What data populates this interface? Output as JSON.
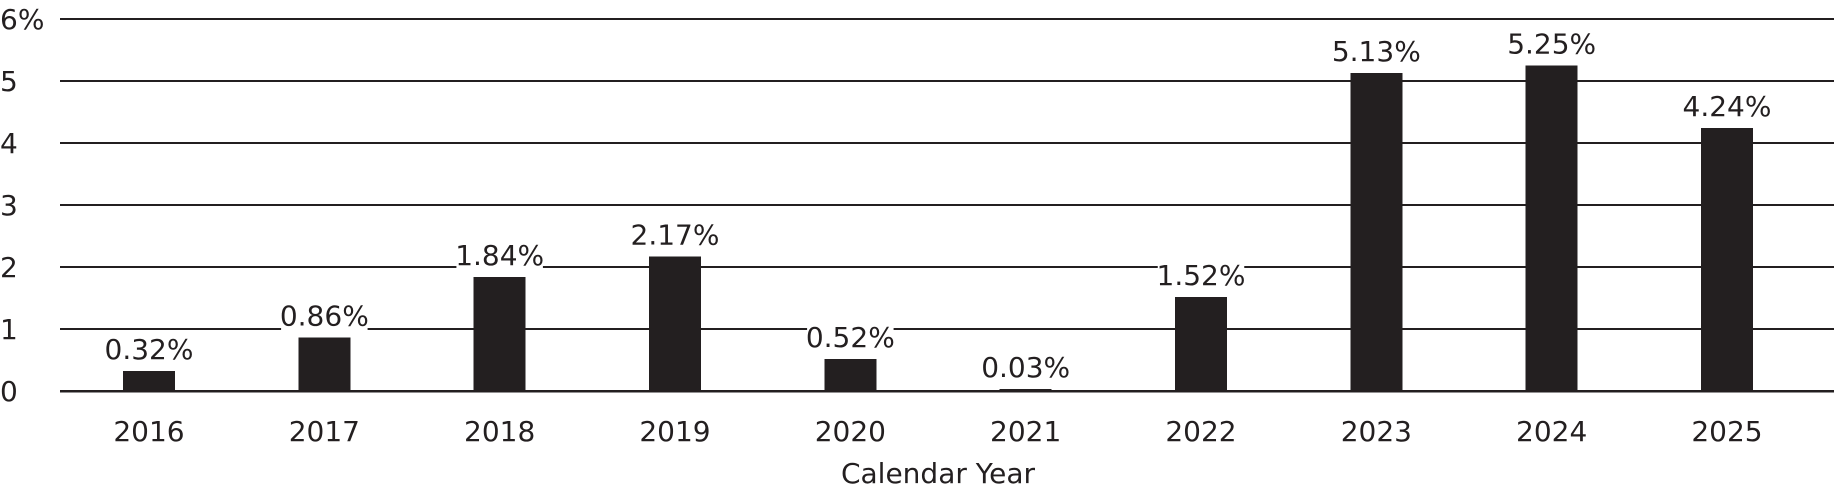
{
  "chart_data": {
    "type": "bar",
    "title": "",
    "xlabel": "Calendar Year",
    "ylabel": "",
    "categories": [
      "2016",
      "2017",
      "2018",
      "2019",
      "2020",
      "2021",
      "2022",
      "2023",
      "2024",
      "2025"
    ],
    "values": [
      0.32,
      0.86,
      1.84,
      2.17,
      0.52,
      0.03,
      1.52,
      5.13,
      5.25,
      4.24
    ],
    "data_labels": [
      "0.32%",
      "0.86%",
      "1.84%",
      "2.17%",
      "0.52%",
      "0.03%",
      "1.52%",
      "5.13%",
      "5.25%",
      "4.24%"
    ],
    "ylim": [
      0,
      6
    ],
    "y_ticks": [
      0,
      1,
      2,
      3,
      4,
      5,
      6
    ],
    "y_tick_labels": [
      "0",
      "1",
      "2",
      "3",
      "4",
      "5",
      "6%"
    ],
    "grid": true,
    "legend": "none",
    "colors": {
      "bar": "#231f20",
      "grid": "#231f20",
      "text": "#231f20",
      "background": "#ffffff"
    }
  }
}
